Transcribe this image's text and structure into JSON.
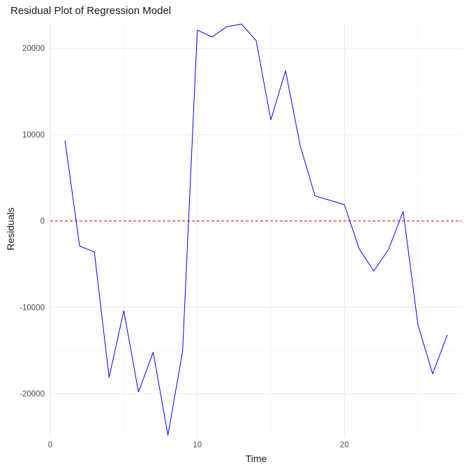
{
  "chart_data": {
    "type": "line",
    "title": "Residual Plot of Regression Model",
    "xlabel": "Time",
    "ylabel": "Residuals",
    "xlim": [
      0,
      28
    ],
    "ylim": [
      -25000,
      23000
    ],
    "x_ticks": [
      0,
      10,
      20
    ],
    "y_ticks": [
      -20000,
      -10000,
      0,
      10000,
      20000
    ],
    "x_tick_labels": [
      "0",
      "10",
      "20"
    ],
    "y_tick_labels": [
      "-20000",
      "-10000",
      "0",
      "10000",
      "20000"
    ],
    "grid": true,
    "series": [
      {
        "color": "#0000ff",
        "x": [
          1,
          2,
          3,
          4,
          5,
          6,
          7,
          8,
          9,
          10,
          11,
          12,
          13,
          14,
          15,
          16,
          17,
          18,
          19,
          20,
          21,
          22,
          23,
          24,
          25,
          26,
          27
        ],
        "y": [
          9300,
          -2900,
          -3600,
          -18100,
          -10400,
          -19800,
          -15200,
          -24800,
          -15100,
          22100,
          21300,
          22500,
          22800,
          20900,
          11700,
          17400,
          8700,
          2900,
          2400,
          1900,
          -3200,
          -5800,
          -3300,
          1100,
          -12000,
          -17700,
          -13200
        ]
      }
    ],
    "reference_line": {
      "y": 0,
      "color": "#ff0000",
      "style": "dashed"
    }
  }
}
